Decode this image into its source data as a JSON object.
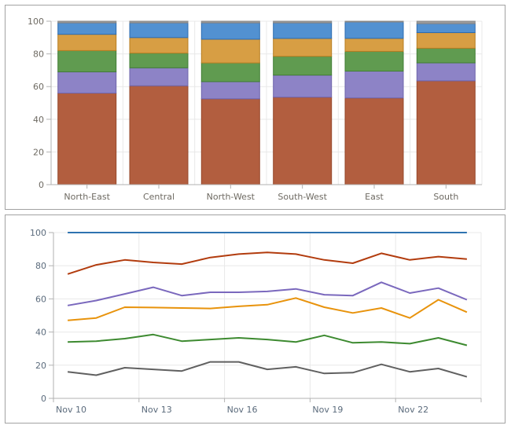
{
  "page": {
    "background": "#ffffff",
    "panel_border_color": "#a2a2a2",
    "axis_color": "#b2b2b2",
    "grid_color": "#e8e8e8"
  },
  "chart_data": [
    {
      "type": "bar",
      "stacked": true,
      "title": "",
      "xlabel": "",
      "ylabel": "",
      "ylim": [
        0,
        100
      ],
      "yticks": [
        0,
        20,
        40,
        60,
        80,
        100
      ],
      "grid": true,
      "legend_position": "none",
      "label_color": "#6e6a62",
      "categories": [
        "North-East",
        "Central",
        "North-West",
        "South-West",
        "East",
        "South"
      ],
      "series": [
        {
          "name": "rust",
          "color": "#b25e3f",
          "border": "#96482b",
          "values": [
            56,
            60.5,
            52.5,
            53.5,
            53,
            63.5
          ]
        },
        {
          "name": "purple",
          "color": "#8d83c6",
          "border": "#6e64ab",
          "values": [
            13,
            11,
            10.5,
            13.5,
            16.5,
            11
          ]
        },
        {
          "name": "green",
          "color": "#609b50",
          "border": "#417d34",
          "values": [
            13,
            9,
            11.5,
            11.5,
            12,
            9
          ]
        },
        {
          "name": "orange",
          "color": "#d79e44",
          "border": "#b77d22",
          "values": [
            10,
            9.5,
            14.5,
            11,
            8,
            9.5
          ]
        },
        {
          "name": "blue",
          "color": "#5291d1",
          "border": "#2e6cb0",
          "values": [
            7,
            9,
            10,
            9.5,
            10,
            5.5
          ]
        },
        {
          "name": "gray",
          "color": "#9b9b9b",
          "border": "#858585",
          "values": [
            1,
            1,
            1,
            1,
            0.5,
            1.5
          ]
        }
      ]
    },
    {
      "type": "line",
      "title": "",
      "xlabel": "",
      "ylabel": "",
      "ylim": [
        0,
        100
      ],
      "yticks": [
        0,
        20,
        40,
        60,
        80,
        100
      ],
      "grid": true,
      "legend_position": "none",
      "label_color": "#5b6b7c",
      "x_axis_range_days": [
        10,
        25
      ],
      "x_tick_days": [
        10,
        13,
        16,
        19,
        22,
        25
      ],
      "x_tick_labels": [
        "Nov 10",
        "Nov 13",
        "Nov 16",
        "Nov 19",
        "Nov 22",
        ""
      ],
      "point_day_offset": 0.5,
      "x": [
        "Nov 10",
        "Nov 11",
        "Nov 12",
        "Nov 13",
        "Nov 14",
        "Nov 15",
        "Nov 16",
        "Nov 17",
        "Nov 18",
        "Nov 19",
        "Nov 20",
        "Nov 21",
        "Nov 22",
        "Nov 23",
        "Nov 24"
      ],
      "series": [
        {
          "name": "gray",
          "color": "#606060",
          "values": [
            16,
            14,
            18.5,
            17.5,
            16.5,
            22,
            22,
            17.5,
            19,
            15,
            15.5,
            20.5,
            16,
            18,
            13
          ]
        },
        {
          "name": "green",
          "color": "#3d8a30",
          "values": [
            34,
            34.5,
            36,
            38.5,
            34.5,
            35.5,
            36.5,
            35.5,
            34,
            38,
            33.5,
            34,
            33,
            36.5,
            32
          ]
        },
        {
          "name": "orange",
          "color": "#e8930c",
          "values": [
            47,
            48.5,
            55,
            54.8,
            54.5,
            54.2,
            55.5,
            56.5,
            60.5,
            55,
            51.5,
            54.5,
            48.5,
            59.5,
            52
          ]
        },
        {
          "name": "purple",
          "color": "#7a68bd",
          "values": [
            56,
            59,
            63,
            67,
            62,
            64,
            64,
            64.5,
            66,
            62.5,
            62,
            70,
            63.5,
            66.5,
            59.5
          ]
        },
        {
          "name": "red",
          "color": "#b23c0e",
          "values": [
            75,
            80.5,
            83.5,
            82,
            81,
            85,
            87,
            88,
            87,
            83.5,
            81.5,
            87.5,
            83.5,
            85.5,
            84
          ]
        },
        {
          "name": "blue",
          "color": "#2e73b0",
          "values": [
            100,
            100,
            100,
            100,
            100,
            100,
            100,
            100,
            100,
            100,
            100,
            100,
            100,
            100,
            100
          ]
        }
      ]
    }
  ]
}
